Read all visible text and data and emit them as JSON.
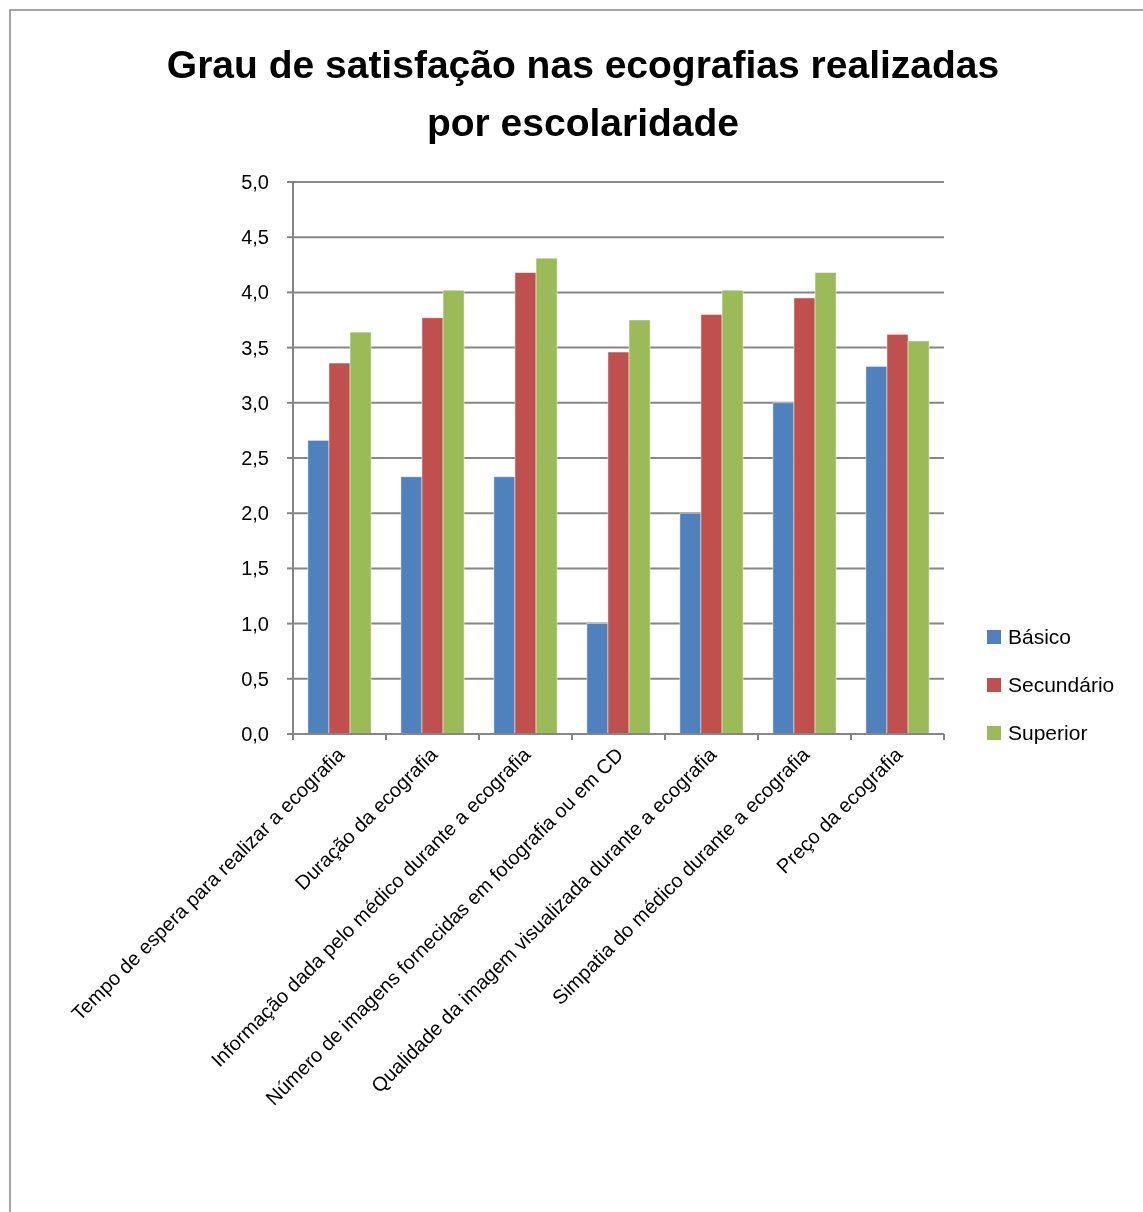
{
  "chart_data": {
    "type": "bar",
    "title": "Grau de satisfação nas ecografias realizadas por escolaridade",
    "categories": [
      "Tempo de espera para realizar a ecografia",
      "Duração da ecografia",
      "Informação dada pelo médico durante a ecografia",
      "Número de imagens fornecidas em fotografia ou em CD",
      "Qualidade da imagem visualizada durante a ecografia",
      "Simpatia do médico durante a ecografia",
      "Preço da ecografia"
    ],
    "series": [
      {
        "name": "Básico",
        "color": "#4f81bd",
        "values": [
          2.66,
          2.33,
          2.33,
          1.0,
          2.0,
          3.0,
          3.33
        ]
      },
      {
        "name": "Secundário",
        "color": "#c0504d",
        "values": [
          3.36,
          3.77,
          4.18,
          3.46,
          3.8,
          3.95,
          3.62
        ]
      },
      {
        "name": "Superior",
        "color": "#9bbb59",
        "values": [
          3.64,
          4.02,
          4.31,
          3.75,
          4.02,
          4.18,
          3.56
        ]
      }
    ],
    "ylim": [
      0,
      5
    ],
    "yticks": [
      {
        "value": 0,
        "label": "0,0"
      },
      {
        "value": 0.5,
        "label": "0,5"
      },
      {
        "value": 1,
        "label": "1,0"
      },
      {
        "value": 1.5,
        "label": "1,5"
      },
      {
        "value": 2,
        "label": "2,0"
      },
      {
        "value": 2.5,
        "label": "2,5"
      },
      {
        "value": 3,
        "label": "3,0"
      },
      {
        "value": 3.5,
        "label": "3,5"
      },
      {
        "value": 4,
        "label": "4,0"
      },
      {
        "value": 4.5,
        "label": "4,5"
      },
      {
        "value": 5,
        "label": "5,0"
      }
    ],
    "grid": "y",
    "legend": "right"
  }
}
